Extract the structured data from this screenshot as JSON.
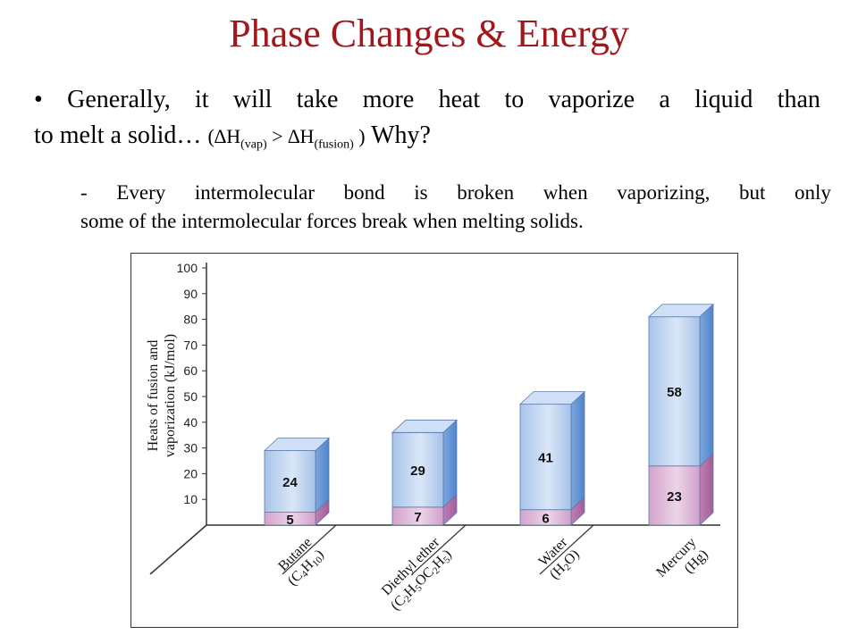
{
  "slide": {
    "title": "Phase Changes & Energy",
    "bullet_mark": "•",
    "bullet_words": [
      "Generally,",
      "it",
      "will",
      "take",
      "more",
      "heat",
      "to",
      "vaporize",
      "a",
      "liquid",
      "than"
    ],
    "bullet_line2": "to melt a solid…",
    "formula_open": "(∆H",
    "formula_sub1": "(vap)",
    "formula_mid": " > ∆H",
    "formula_sub2": "(fusion)",
    "formula_close": " )",
    "why": "Why?",
    "note_words": [
      "-",
      "Every",
      "intermolecular",
      "bond",
      "is",
      "broken",
      "when",
      "vaporizing,",
      "but",
      "only"
    ],
    "note_line2": "some of the intermolecular forces break when melting solids."
  },
  "chart_data": {
    "type": "bar",
    "stacked": true,
    "ylabel_line1": "Heats of fusion and",
    "ylabel_line2": "vaporization (kJ/mol)",
    "ylim": [
      0,
      100
    ],
    "yticks": [
      10,
      20,
      30,
      40,
      50,
      60,
      70,
      80,
      90,
      100
    ],
    "categories": [
      {
        "name": "Butane",
        "formula_parts": [
          [
            "(C",
            ""
          ],
          [
            "4",
            "sub"
          ],
          [
            "H",
            ""
          ],
          [
            "10",
            "sub"
          ],
          [
            ")",
            ""
          ]
        ]
      },
      {
        "name": "Diethyl ether",
        "formula_parts": [
          [
            "(C",
            ""
          ],
          [
            "2",
            "sub"
          ],
          [
            "H",
            ""
          ],
          [
            "5",
            "sub"
          ],
          [
            "OC",
            ""
          ],
          [
            "2",
            "sub"
          ],
          [
            "H",
            ""
          ],
          [
            "5",
            "sub"
          ],
          [
            ")",
            ""
          ]
        ]
      },
      {
        "name": "Water",
        "formula_parts": [
          [
            "(H",
            ""
          ],
          [
            "2",
            "sub"
          ],
          [
            "O)",
            ""
          ]
        ]
      },
      {
        "name": "Mercury",
        "formula_parts": [
          [
            "(Hg)",
            ""
          ]
        ]
      }
    ],
    "series": [
      {
        "key": "fusion",
        "values": [
          5,
          7,
          6,
          23
        ],
        "color": "#d7a6cf"
      },
      {
        "key": "vaporization",
        "values": [
          24,
          29,
          41,
          58
        ],
        "color": "#a9c6ea"
      }
    ]
  }
}
